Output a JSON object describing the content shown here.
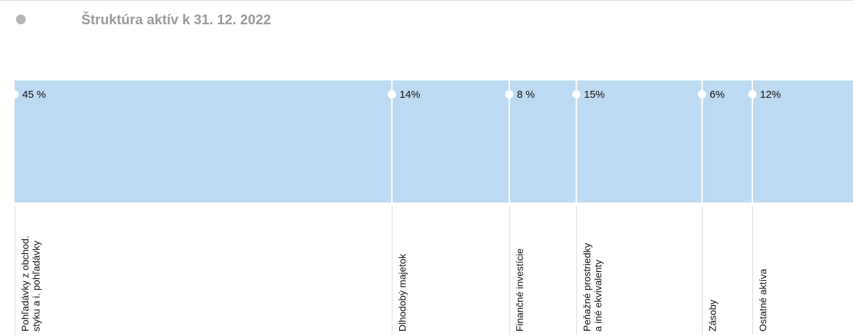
{
  "chart_data": {
    "type": "stacked-bar",
    "title": "Štruktúra aktív k 31. 12. 2022",
    "xlim": [
      0,
      100
    ],
    "color": "#bcdaf2",
    "categories": [
      [
        "Pohľadávky z obchod.",
        "styku a i. pohľadávky"
      ],
      [
        "Dlhodobý majetok"
      ],
      [
        "Finančné investície"
      ],
      [
        "Peňažné prostriedky",
        "a iné ekvivalenty"
      ],
      [
        "Zásoby"
      ],
      [
        "Ostatné aktíva"
      ]
    ],
    "values": [
      45,
      14,
      8,
      15,
      6,
      12
    ],
    "value_labels": [
      "45 %",
      "14%",
      "8 %",
      "15%",
      "6%",
      "12%"
    ]
  }
}
